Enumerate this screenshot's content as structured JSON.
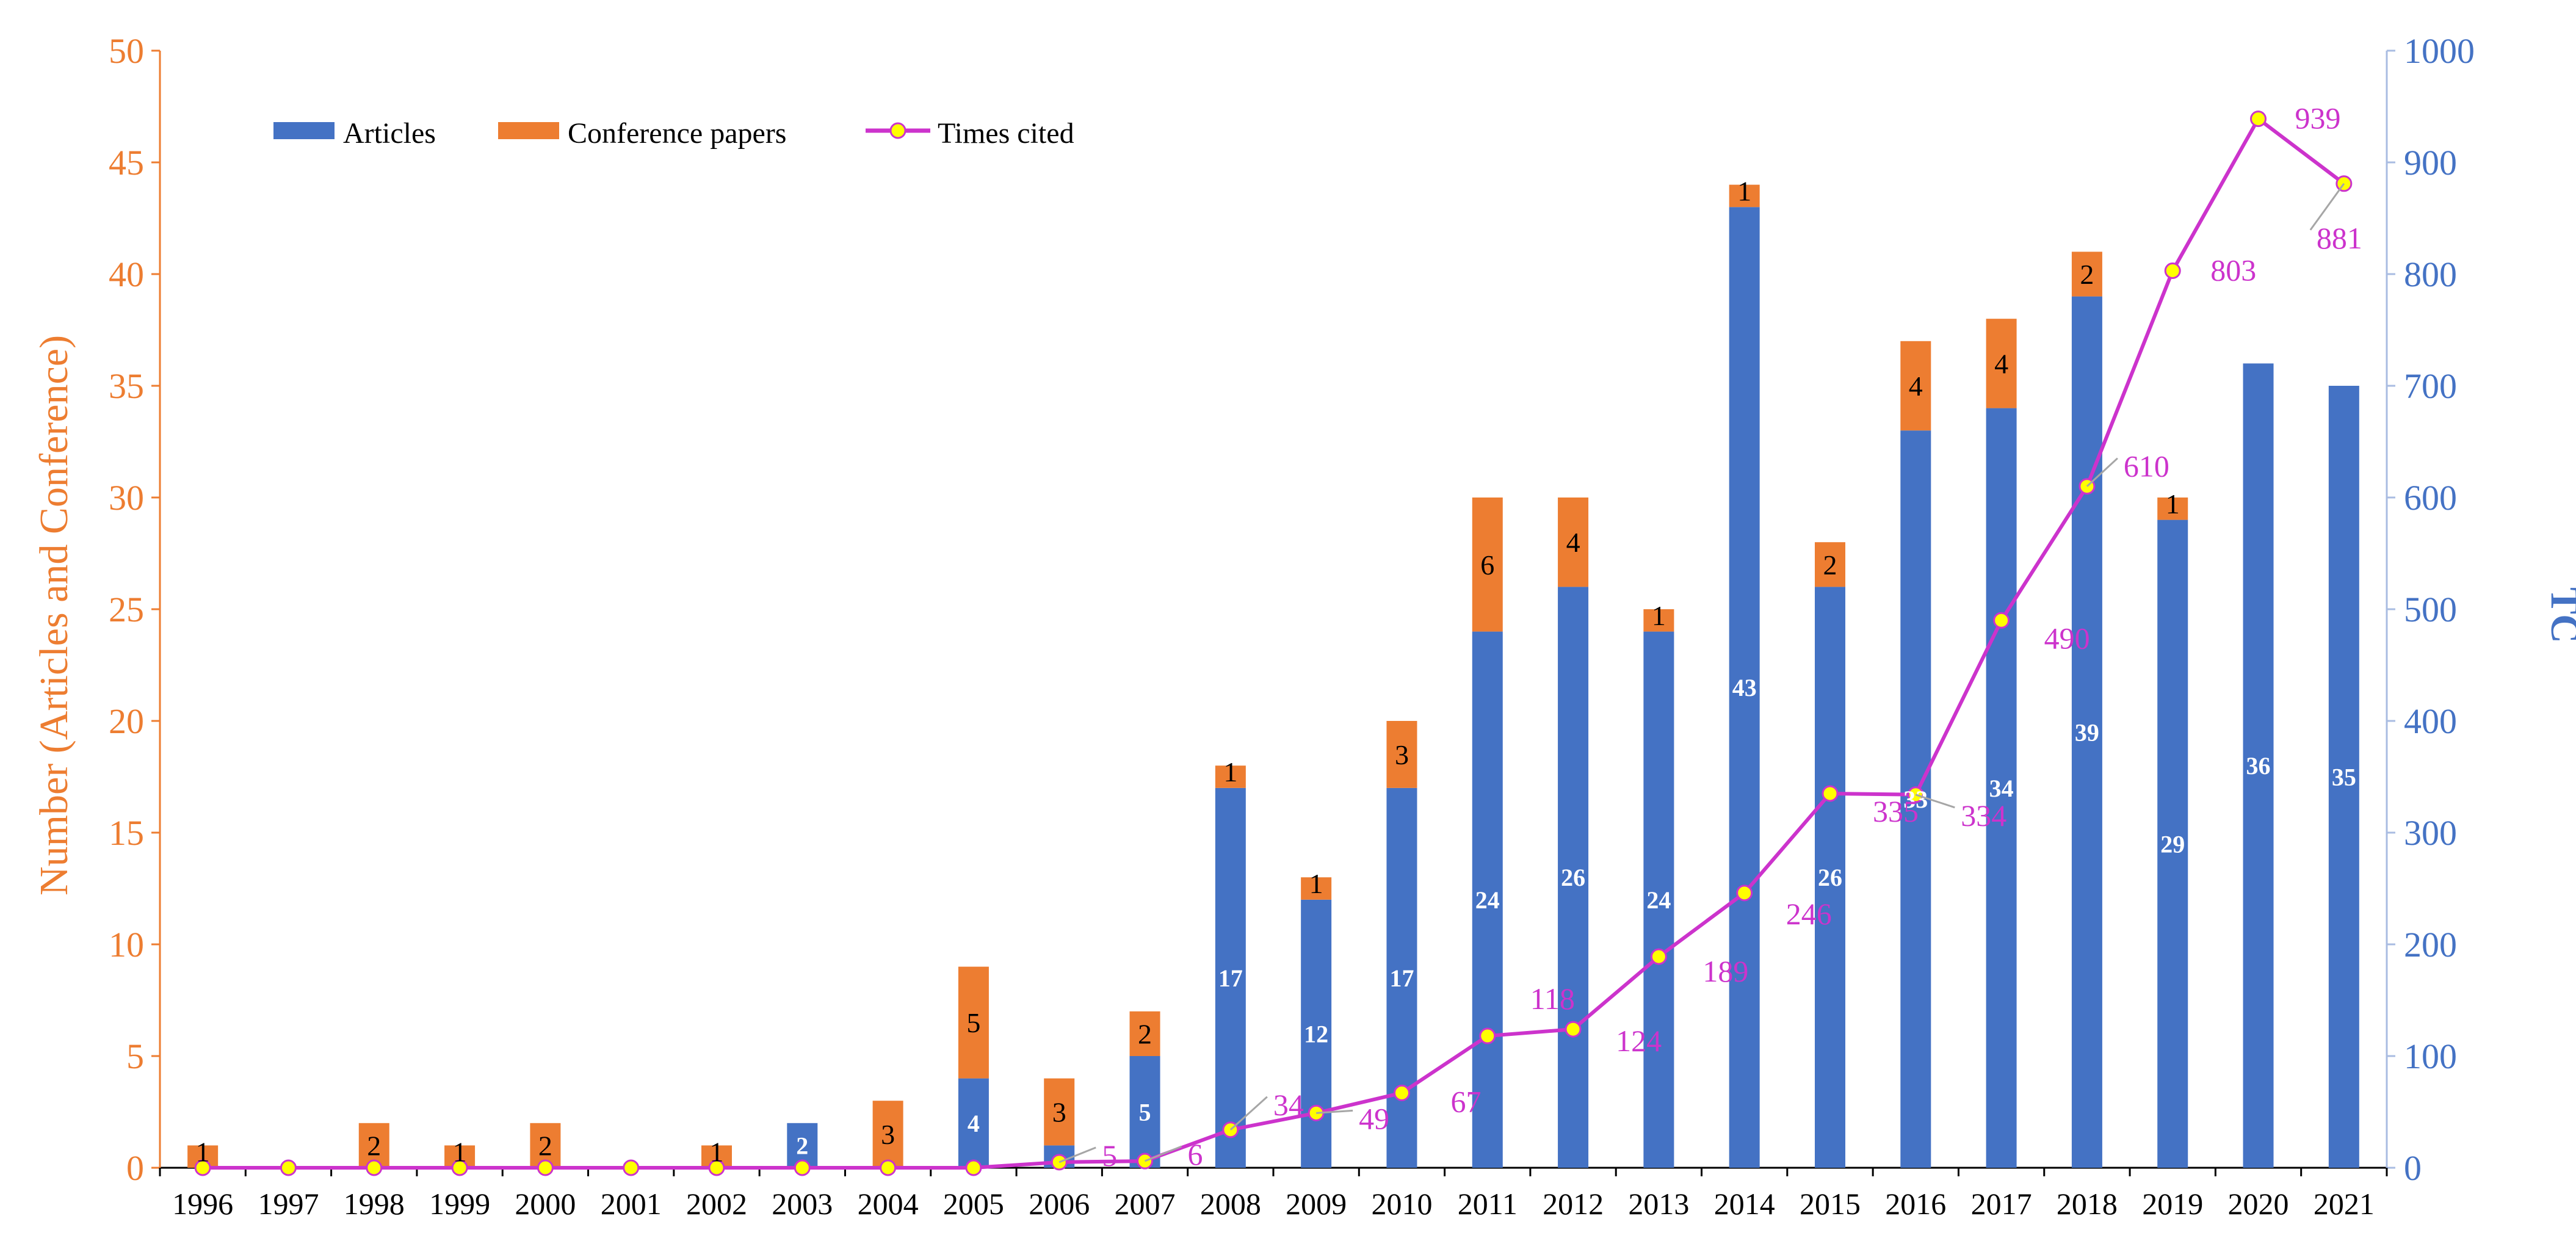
{
  "chart_data": {
    "type": "bar",
    "stacked": true,
    "categories": [
      "1996",
      "1997",
      "1998",
      "1999",
      "2000",
      "2001",
      "2002",
      "2003",
      "2004",
      "2005",
      "2006",
      "2007",
      "2008",
      "2009",
      "2010",
      "2011",
      "2012",
      "2013",
      "2014",
      "2015",
      "2016",
      "2017",
      "2018",
      "2019",
      "2020",
      "2021"
    ],
    "series": [
      {
        "name": "Articles",
        "axis": "left",
        "color": "#4472C4",
        "values": [
          0,
          0,
          0,
          0,
          0,
          0,
          0,
          2,
          0,
          4,
          1,
          5,
          17,
          12,
          17,
          24,
          26,
          24,
          43,
          26,
          33,
          34,
          39,
          29,
          36,
          35
        ],
        "labels": [
          "",
          "",
          "",
          "",
          "",
          "",
          "",
          "2",
          "",
          "4",
          "",
          "5",
          "17",
          "12",
          "17",
          "24",
          "26",
          "24",
          "43",
          "26",
          "33",
          "34",
          "39",
          "29",
          "36",
          "35"
        ]
      },
      {
        "name": "Conference papers",
        "axis": "left",
        "color": "#ED7D31",
        "values": [
          1,
          0,
          2,
          1,
          2,
          0,
          1,
          0,
          3,
          5,
          3,
          2,
          1,
          1,
          3,
          6,
          4,
          1,
          1,
          2,
          4,
          4,
          2,
          1,
          0,
          0
        ],
        "labels": [
          "1",
          "",
          "2",
          "1",
          "2",
          "",
          "1",
          "",
          "3",
          "5",
          "3",
          "2",
          "1",
          "1",
          "3",
          "6",
          "4",
          "1",
          "1",
          "2",
          "4",
          "4",
          "2",
          "1",
          "",
          ""
        ]
      },
      {
        "name": "Times cited",
        "type": "line",
        "axis": "right",
        "color": "#CC33CC",
        "marker": "#FFFF00",
        "values": [
          0,
          0,
          0,
          0,
          0,
          0,
          0,
          0,
          0,
          0,
          5,
          6,
          34,
          49,
          67,
          118,
          124,
          189,
          246,
          335,
          334,
          490,
          610,
          803,
          939,
          881
        ],
        "labels": [
          "",
          "",
          "",
          "",
          "",
          "",
          "",
          "",
          "",
          "",
          "5",
          "6",
          "34",
          "49",
          "67",
          "118",
          "124",
          "189",
          "246",
          "335",
          "334",
          "490",
          "610",
          "803",
          "939",
          "881"
        ]
      }
    ],
    "ylabel": "Number (Articles and Conference)",
    "ylim": [
      0,
      50
    ],
    "yticks": [
      "0",
      "5",
      "10",
      "15",
      "20",
      "25",
      "30",
      "35",
      "40",
      "45",
      "50"
    ],
    "y2label": "TC",
    "y2lim": [
      0,
      1000
    ],
    "y2ticks": [
      "0",
      "100",
      "200",
      "300",
      "400",
      "500",
      "600",
      "700",
      "800",
      "900",
      "1000"
    ],
    "xlabel": "",
    "legend": "top-left",
    "grid": false
  },
  "colors": {
    "articles": "#4472C4",
    "conference": "#ED7D31",
    "line": "#CC33CC",
    "marker": "#FFFF00",
    "leader": "#A6A6A6"
  }
}
